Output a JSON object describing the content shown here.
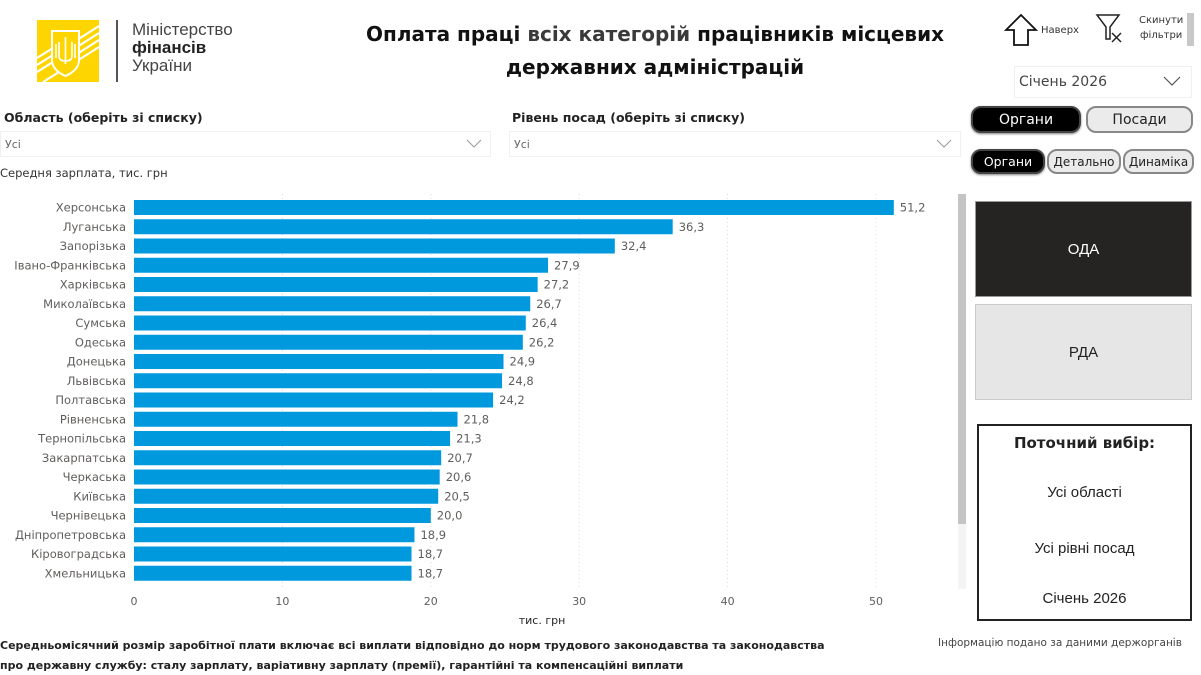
{
  "header": {
    "ministry_line1": "Міністерство",
    "ministry_line2": "фінансів",
    "ministry_line3": "України",
    "title_part1": "Оплата праці ",
    "title_part2": "всіх категорій",
    "title_part3": " працівників місцевих державних адміністрацій",
    "top_label": "Наверх",
    "reset_label_1": "Скинути",
    "reset_label_2": "фільтри",
    "month_value": "Січень 2026"
  },
  "colors": {
    "bar": "#0099DE",
    "logo_yellow": "#FFD500",
    "active_tile": "#252423"
  },
  "filters": {
    "region_label": "Область (оберіть зі списку)",
    "region_value": "Усі",
    "level_label": "Рівень посад (оберіть зі списку)",
    "level_value": "Усі"
  },
  "toggles": {
    "row1": [
      {
        "label": "Органи",
        "active": true
      },
      {
        "label": "Посади",
        "active": false
      }
    ],
    "row2": [
      {
        "label": "Органи",
        "active": true
      },
      {
        "label": "Детально",
        "active": false
      },
      {
        "label": "Динаміка",
        "active": false
      }
    ]
  },
  "org_tiles": {
    "oda": "ОДА",
    "rda": "РДА"
  },
  "current_selection": {
    "title": "Поточний вибір:",
    "region": "Усі області",
    "level": "Усі рівні посад",
    "month": "Січень 2026"
  },
  "chart_data": {
    "type": "bar",
    "orientation": "horizontal",
    "title": "Середня зарплата, тис. грн",
    "xlabel": "тис. грн",
    "ylabel": "",
    "xlim": [
      0,
      55
    ],
    "xticks": [
      0,
      10,
      20,
      30,
      40,
      50
    ],
    "grid": true,
    "categories": [
      "Херсонська",
      "Луганська",
      "Запорізька",
      "Івано-Франківська",
      "Харківська",
      "Миколаївська",
      "Сумська",
      "Одеська",
      "Донецька",
      "Львівська",
      "Полтавська",
      "Рівненська",
      "Тернопільська",
      "Закарпатська",
      "Черкаська",
      "Київська",
      "Чернівецька",
      "Дніпропетровська",
      "Кіровоградська",
      "Хмельницька"
    ],
    "values": [
      51.2,
      36.3,
      32.4,
      27.9,
      27.2,
      26.7,
      26.4,
      26.2,
      24.9,
      24.8,
      24.2,
      21.8,
      21.3,
      20.7,
      20.6,
      20.5,
      20.0,
      18.9,
      18.7,
      18.7
    ],
    "value_labels": [
      "51,2",
      "36,3",
      "32,4",
      "27,9",
      "27,2",
      "26,7",
      "26,4",
      "26,2",
      "24,9",
      "24,8",
      "24,2",
      "21,8",
      "21,3",
      "20,7",
      "20,6",
      "20,5",
      "20,0",
      "18,9",
      "18,7",
      "18,7"
    ]
  },
  "footer": {
    "note_line1": "Середньомісячний розмір заробітної плати включає всі виплати відповідно до норм трудового законодавства та законодавства",
    "note_line2": "про державну службу: сталу зарплату, варіативну зарплату (премії), гарантійні та компенсаційні виплати",
    "source": "Інформацію подано за даними держорганів"
  }
}
